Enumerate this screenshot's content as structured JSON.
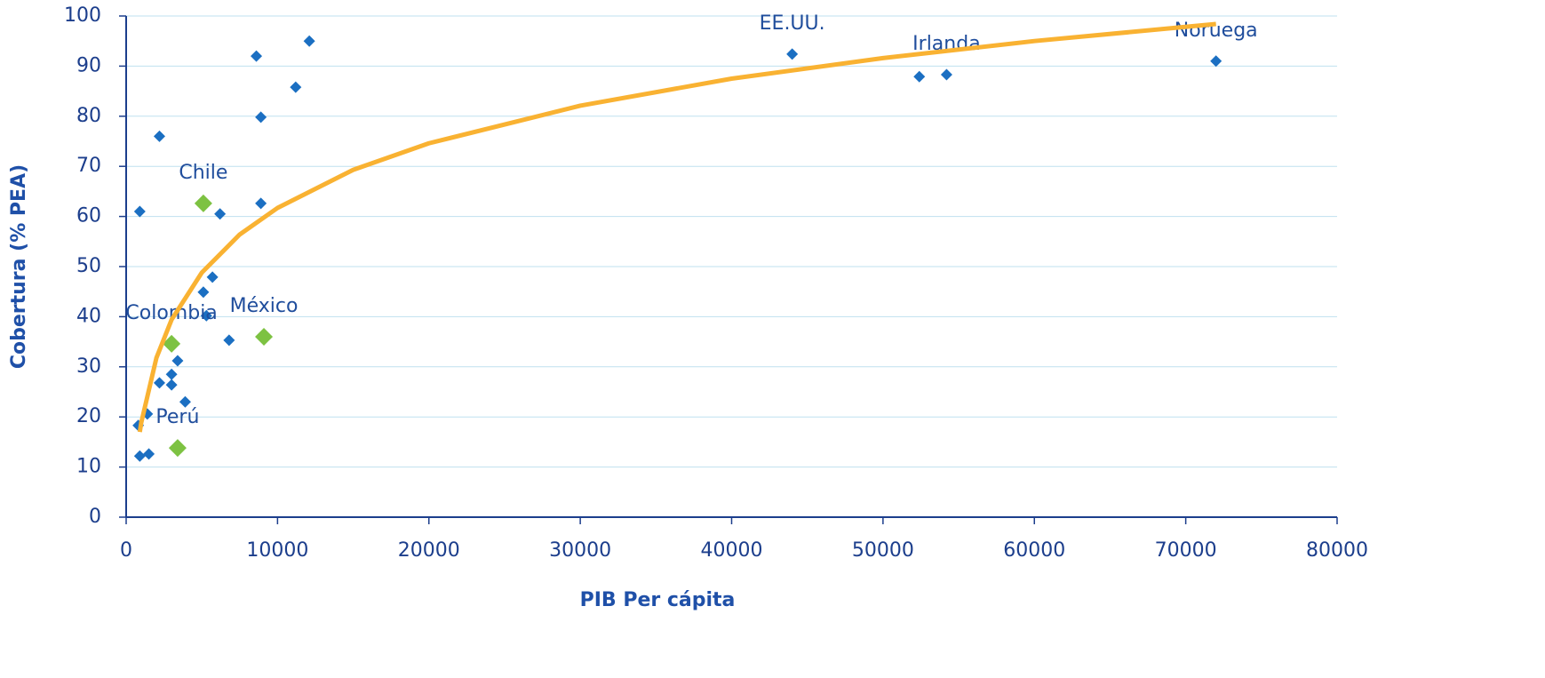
{
  "chart_data": {
    "type": "scatter",
    "x_label": "PIB Per cápita",
    "y_label": "Cobertura (% PEA)",
    "xlim": [
      0,
      80000
    ],
    "xticks": [
      0,
      10000,
      20000,
      30000,
      40000,
      50000,
      60000,
      70000,
      80000
    ],
    "ylim": [
      0,
      100
    ],
    "yticks": [
      0,
      10,
      20,
      30,
      40,
      50,
      60,
      70,
      80,
      90,
      100
    ],
    "grid": true,
    "series": [
      {
        "color": "#1b6fc2",
        "marker": "diamond",
        "x": [
          900,
          2200,
          8600,
          12100,
          11200,
          8900,
          8900,
          6200,
          5700,
          5100,
          5300,
          6800,
          3400,
          3000,
          2200,
          3000,
          3900,
          1400,
          800,
          900,
          1500,
          44000,
          52400,
          54200,
          72000
        ],
        "values": [
          61,
          76,
          92,
          95,
          85.8,
          79.8,
          62.6,
          60.5,
          47.9,
          44.9,
          40.2,
          35.3,
          31.2,
          28.5,
          26.8,
          26.4,
          23,
          20.6,
          18.3,
          12.2,
          12.6,
          92.4,
          87.9,
          88.3,
          91
        ],
        "labels": [
          null,
          null,
          null,
          null,
          null,
          null,
          null,
          null,
          null,
          null,
          null,
          null,
          null,
          null,
          null,
          null,
          null,
          null,
          null,
          null,
          null,
          "EE.UU.",
          null,
          "Irlanda",
          "Noruega"
        ]
      },
      {
        "color": "#7dc242",
        "marker": "diamond-large",
        "x": [
          5100,
          9100,
          3000,
          3400
        ],
        "values": [
          62.6,
          36,
          34.6,
          13.8
        ],
        "labels": [
          "Chile",
          "México",
          "Colombia",
          "Perú"
        ]
      },
      {
        "color": "#f9b232",
        "marker": "line",
        "x": [
          900,
          1000,
          2000,
          3000,
          5000,
          7500,
          10000,
          15000,
          20000,
          30000,
          40000,
          50000,
          60000,
          72000
        ],
        "values": [
          17,
          18.9,
          31.8,
          39.4,
          48.8,
          56.4,
          61.7,
          69.3,
          74.6,
          82.1,
          87.5,
          91.6,
          95,
          98.4
        ]
      }
    ]
  }
}
